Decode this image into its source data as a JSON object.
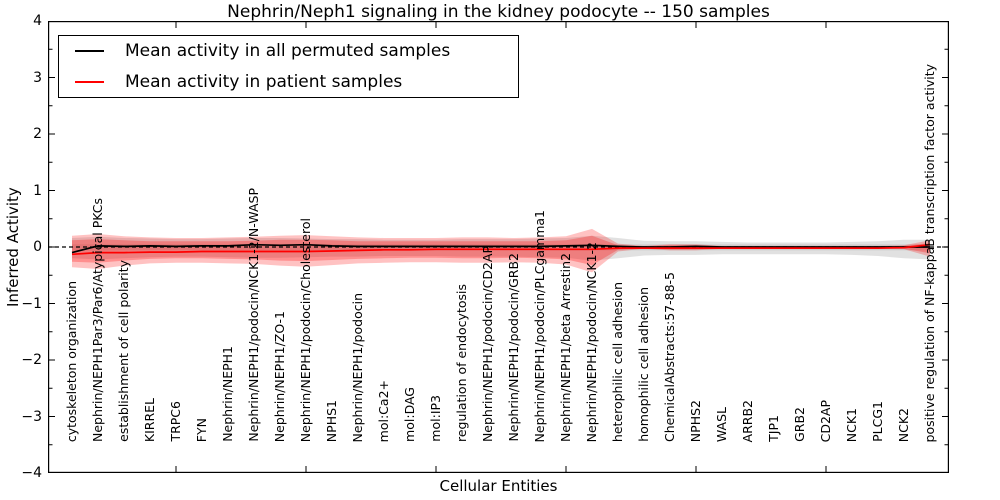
{
  "figure": {
    "title": "Nephrin/Neph1 signaling in the kidney podocyte -- 150 samples"
  },
  "legend": {
    "items": [
      {
        "label": "Mean activity in all permuted samples",
        "color": "#000000"
      },
      {
        "label": "Mean activity in patient samples",
        "color": "#ff0000"
      }
    ]
  },
  "chart_data": {
    "type": "line",
    "title": "Nephrin/Neph1 signaling in the kidney podocyte -- 150 samples",
    "xlabel": "Cellular Entities",
    "ylabel": "Inferred Activity",
    "ylim": [
      -4,
      4
    ],
    "grid": false,
    "legend_position": "upper left",
    "ytick_values": [
      4,
      3,
      2,
      1,
      0,
      -1,
      -2,
      -3,
      -4
    ],
    "ytick_labels": [
      "4",
      "3",
      "2",
      "1",
      "0",
      "−1",
      "−2",
      "−3",
      "−4"
    ],
    "ytick_minor_values": [
      3.5,
      2.5,
      1.5,
      0.5,
      -0.5,
      -1.5,
      -2.5,
      -3.5
    ],
    "xtick_entity_indices": [
      4,
      9,
      14,
      19,
      24,
      29
    ],
    "categories": [
      "cytoskeleton organization",
      "Nephrin/NEPH1Par3/Par6/Atypical PKCs",
      "establishment of cell polarity",
      "KIRREL",
      "TRPC6",
      "FYN",
      "Nephrin/NEPH1",
      "Nephrin/NEPH1/podocin/NCK1-2/N-WASP",
      "Nephrin/NEPH1/ZO-1",
      "Nephrin/NEPH1/podocin/Cholesterol",
      "NPHS1",
      "Nephrin/NEPH1/podocin",
      "mol:Ca2+",
      "mol:DAG",
      "mol:IP3",
      "regulation of endocytosis",
      "Nephrin/NEPH1/podocin/CD2AP",
      "Nephrin/NEPH1/podocin/GRB2",
      "Nephrin/NEPH1/podocin/PLCgamma1",
      "Nephrin/NEPH1/beta Arrestin2",
      "Nephrin/NEPH1/podocin/NCK1-2",
      "heterophilic cell adhesion",
      "homophilic cell adhesion",
      "ChemicalAbstracts:57-88-5",
      "NPHS2",
      "WASL",
      "ARRB2",
      "TJP1",
      "GRB2",
      "CD2AP",
      "NCK1",
      "PLCG1",
      "NCK2",
      "positive regulation of NF-kappaB transcription factor activity"
    ],
    "reference_line": {
      "id": "zero-reference",
      "value": 0,
      "color": "#000000",
      "style": "dashed"
    },
    "series": [
      {
        "id": "mean-permuted",
        "name": "Mean activity in all permuted samples",
        "color": "#000000",
        "style": "solid",
        "values": [
          -0.1,
          0.02,
          0.01,
          0.02,
          0.01,
          0.02,
          0.02,
          0.04,
          0.03,
          0.04,
          0.02,
          0.01,
          0.01,
          0.01,
          0.01,
          0.01,
          0.01,
          0.01,
          0.01,
          0.02,
          0.03,
          0.01,
          0.0,
          0.0,
          0.01,
          0.0,
          0.0,
          0.0,
          0.0,
          0.0,
          0.0,
          0.0,
          0.0,
          0.0
        ]
      },
      {
        "id": "mean-patient",
        "name": "Mean activity in patient samples",
        "color": "#ff0000",
        "style": "solid",
        "values": [
          -0.13,
          -0.1,
          -0.1,
          -0.09,
          -0.09,
          -0.08,
          -0.08,
          -0.08,
          -0.08,
          -0.08,
          -0.07,
          -0.06,
          -0.05,
          -0.05,
          -0.04,
          -0.04,
          -0.04,
          -0.04,
          -0.04,
          -0.04,
          -0.04,
          -0.02,
          -0.02,
          -0.02,
          -0.02,
          -0.02,
          -0.02,
          -0.02,
          -0.02,
          -0.02,
          -0.02,
          -0.02,
          -0.01,
          0.04
        ]
      }
    ],
    "bands": [
      {
        "id": "permuted-range",
        "color": "#888888",
        "opacity": 0.25,
        "upper": [
          0.16,
          0.18,
          0.16,
          0.15,
          0.14,
          0.14,
          0.15,
          0.16,
          0.16,
          0.15,
          0.14,
          0.14,
          0.13,
          0.13,
          0.13,
          0.14,
          0.14,
          0.14,
          0.15,
          0.16,
          0.2,
          0.16,
          0.11,
          0.1,
          0.1,
          0.09,
          0.08,
          0.08,
          0.08,
          0.08,
          0.09,
          0.1,
          0.13,
          0.13
        ],
        "lower": [
          -0.2,
          -0.22,
          -0.2,
          -0.18,
          -0.17,
          -0.17,
          -0.18,
          -0.19,
          -0.19,
          -0.18,
          -0.17,
          -0.17,
          -0.16,
          -0.16,
          -0.16,
          -0.17,
          -0.17,
          -0.17,
          -0.18,
          -0.19,
          -0.24,
          -0.2,
          -0.15,
          -0.14,
          -0.14,
          -0.13,
          -0.13,
          -0.13,
          -0.13,
          -0.13,
          -0.14,
          -0.16,
          -0.2,
          -0.22
        ]
      },
      {
        "id": "permuted-core",
        "color": "#888888",
        "opacity": 0.2,
        "upper": [
          0.05,
          0.05,
          0.05,
          0.05,
          0.05,
          0.05,
          0.05,
          0.05,
          0.05,
          0.05,
          0.05,
          0.05,
          0.05,
          0.05,
          0.05,
          0.05,
          0.05,
          0.05,
          0.05,
          0.05,
          0.05,
          0.05,
          0.05,
          0.05,
          0.05,
          0.05,
          0.05,
          0.05,
          0.05,
          0.05,
          0.05,
          0.05,
          0.05,
          0.05
        ],
        "lower": [
          -0.06,
          -0.06,
          -0.06,
          -0.06,
          -0.06,
          -0.06,
          -0.06,
          -0.06,
          -0.06,
          -0.06,
          -0.06,
          -0.06,
          -0.06,
          -0.06,
          -0.06,
          -0.06,
          -0.06,
          -0.06,
          -0.06,
          -0.06,
          -0.06,
          -0.06,
          -0.06,
          -0.06,
          -0.06,
          -0.06,
          -0.06,
          -0.06,
          -0.06,
          -0.06,
          -0.06,
          -0.06,
          -0.06,
          -0.06
        ]
      },
      {
        "id": "patient-range",
        "color": "#ff0000",
        "opacity": 0.24,
        "upper": [
          0.2,
          0.23,
          0.19,
          0.17,
          0.16,
          0.16,
          0.17,
          0.18,
          0.2,
          0.21,
          0.19,
          0.17,
          0.16,
          0.16,
          0.16,
          0.17,
          0.17,
          0.16,
          0.17,
          0.19,
          0.32,
          0.06,
          0.02,
          0.05,
          0.05,
          0.02,
          0.02,
          0.02,
          0.02,
          0.02,
          0.02,
          0.02,
          0.03,
          0.12
        ],
        "lower": [
          -0.36,
          -0.39,
          -0.33,
          -0.29,
          -0.28,
          -0.28,
          -0.29,
          -0.3,
          -0.33,
          -0.35,
          -0.32,
          -0.29,
          -0.28,
          -0.27,
          -0.27,
          -0.28,
          -0.28,
          -0.27,
          -0.28,
          -0.31,
          -0.45,
          -0.08,
          -0.03,
          -0.06,
          -0.06,
          -0.03,
          -0.03,
          -0.03,
          -0.03,
          -0.03,
          -0.03,
          -0.03,
          -0.04,
          -0.17
        ]
      },
      {
        "id": "patient-core",
        "color": "#ff0000",
        "opacity": 0.26,
        "upper": [
          0.12,
          0.14,
          0.12,
          0.1,
          0.1,
          0.1,
          0.1,
          0.11,
          0.13,
          0.13,
          0.12,
          0.1,
          0.1,
          0.1,
          0.1,
          0.1,
          0.1,
          0.1,
          0.1,
          0.12,
          0.2,
          0.03,
          0.01,
          0.03,
          0.03,
          0.01,
          0.01,
          0.01,
          0.01,
          0.01,
          0.01,
          0.01,
          0.02,
          0.07
        ],
        "lower": [
          -0.26,
          -0.28,
          -0.24,
          -0.21,
          -0.2,
          -0.2,
          -0.21,
          -0.22,
          -0.24,
          -0.25,
          -0.23,
          -0.21,
          -0.2,
          -0.19,
          -0.19,
          -0.2,
          -0.2,
          -0.19,
          -0.2,
          -0.22,
          -0.32,
          -0.05,
          -0.02,
          -0.04,
          -0.04,
          -0.02,
          -0.02,
          -0.02,
          -0.02,
          -0.02,
          -0.02,
          -0.02,
          -0.03,
          -0.11
        ]
      }
    ]
  }
}
